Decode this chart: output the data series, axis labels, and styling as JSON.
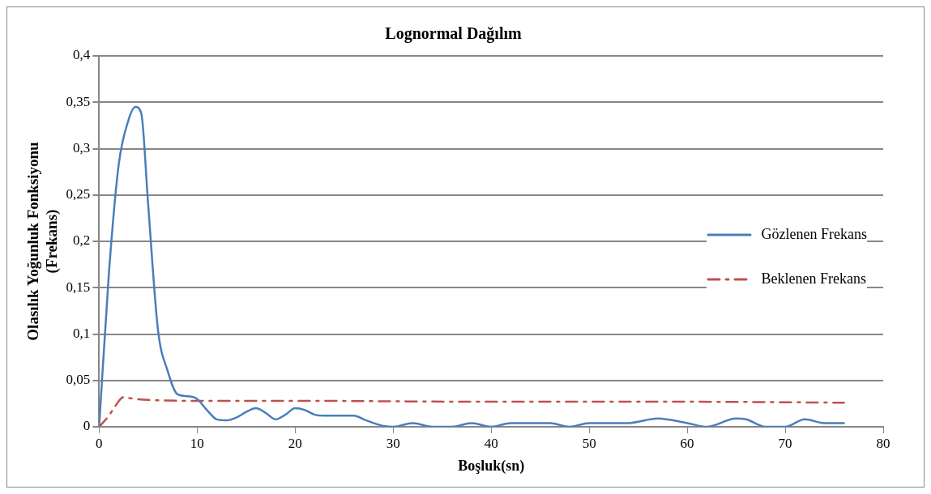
{
  "chart_data": {
    "type": "line",
    "title": "Lognormal Dağılım",
    "xlabel": "Boşluk(sn)",
    "ylabel": "Olasılık Yoğunluk Fonksiyonu (Frekans)",
    "xlim": [
      0,
      80
    ],
    "xticks": [
      0,
      10,
      20,
      30,
      40,
      50,
      60,
      70,
      80
    ],
    "ylim": [
      0,
      0.4
    ],
    "yticks": [
      {
        "value": 0,
        "label": "0"
      },
      {
        "value": 0.05,
        "label": "0,05"
      },
      {
        "value": 0.1,
        "label": "0,1"
      },
      {
        "value": 0.15,
        "label": "0,15"
      },
      {
        "value": 0.2,
        "label": "0,2"
      },
      {
        "value": 0.25,
        "label": "0,25"
      },
      {
        "value": 0.3,
        "label": "0,3"
      },
      {
        "value": 0.35,
        "label": "0,35"
      },
      {
        "value": 0.4,
        "label": "0,4"
      }
    ],
    "grid": "y",
    "legend": "right",
    "marker": "none",
    "series": [
      {
        "name": "Gözlenen Frekans",
        "color": "#4a7ebb",
        "line_style": "solid",
        "x": [
          0,
          1,
          2,
          3,
          3.7,
          4.3,
          5,
          6,
          7,
          8,
          9,
          10,
          11,
          12,
          13,
          14,
          15,
          16,
          17,
          18,
          19,
          20,
          21,
          22,
          23,
          24,
          25,
          26,
          27,
          28,
          29,
          30,
          32,
          34,
          36,
          38,
          40,
          42,
          44,
          46,
          48,
          50,
          52,
          54,
          57,
          60,
          62,
          65,
          66,
          68,
          70,
          72,
          74,
          76
        ],
        "values": [
          0,
          0.166,
          0.283,
          0.331,
          0.345,
          0.338,
          0.24,
          0.105,
          0.06,
          0.035,
          0.033,
          0.03,
          0.018,
          0.008,
          0.007,
          0.01,
          0.016,
          0.02,
          0.015,
          0.008,
          0.013,
          0.02,
          0.018,
          0.013,
          0.012,
          0.012,
          0.012,
          0.012,
          0.008,
          0.004,
          0.001,
          0,
          0.004,
          0,
          0,
          0.004,
          0,
          0.004,
          0.004,
          0.004,
          0,
          0.004,
          0.004,
          0.004,
          0.009,
          0.004,
          0,
          0.009,
          0.008,
          0,
          0,
          0.008,
          0.004,
          0.004
        ]
      },
      {
        "name": "Beklenen Frekans",
        "color": "#c0504d",
        "line_style": "dashed",
        "x": [
          0,
          1,
          1.5,
          2.5,
          3,
          5,
          10,
          20,
          40,
          60,
          76
        ],
        "values": [
          0,
          0.012,
          0.02,
          0.032,
          0.031,
          0.029,
          0.028,
          0.028,
          0.027,
          0.027,
          0.026
        ]
      }
    ]
  }
}
